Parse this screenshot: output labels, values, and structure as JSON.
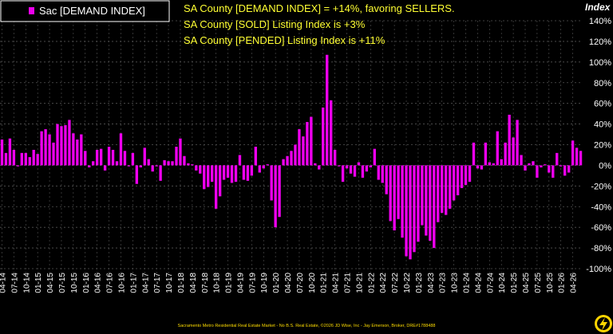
{
  "chart_data": {
    "type": "bar",
    "title": "",
    "xlabel": "",
    "ylabel": "Index",
    "ylim": [
      -100,
      140
    ],
    "yticks": [
      -100,
      -80,
      -60,
      -40,
      -20,
      0,
      20,
      40,
      60,
      80,
      100,
      120,
      140
    ],
    "ytick_labels": [
      "-100%",
      "-80%",
      "-60%",
      "-40%",
      "-20%",
      "0%",
      "20%",
      "40%",
      "60%",
      "80%",
      "100%",
      "120%",
      "140%"
    ],
    "grid": true,
    "legend_position": "top-left",
    "series": [
      {
        "name": "Sac [DEMAND INDEX]",
        "color": "#ee00ee",
        "start": "2014-04",
        "values": [
          25,
          12,
          26,
          15,
          -1,
          12,
          12,
          8,
          15,
          11,
          33,
          35,
          30,
          22,
          40,
          38,
          39,
          44,
          31,
          25,
          30,
          14,
          -2,
          4,
          15,
          16,
          -5,
          18,
          15,
          4,
          31,
          14,
          -1,
          12,
          -18,
          -2,
          17,
          6,
          -6,
          -1,
          -15,
          5,
          4,
          4,
          18,
          26,
          9,
          2,
          1,
          -5,
          -8,
          -23,
          -21,
          -16,
          -42,
          -30,
          -14,
          -12,
          -17,
          -16,
          10,
          -14,
          -15,
          -10,
          18,
          -7,
          -3,
          1,
          -34,
          -60,
          -50,
          6,
          9,
          14,
          20,
          35,
          28,
          42,
          47,
          2,
          -4,
          56,
          107,
          63,
          15,
          -1,
          -16,
          -3,
          -8,
          -11,
          3,
          -12,
          -6,
          -2,
          16,
          -14,
          -17,
          -28,
          -54,
          -63,
          -52,
          -70,
          -88,
          -91,
          -84,
          -74,
          -58,
          -68,
          -73,
          -80,
          -55,
          -46,
          -48,
          -42,
          -34,
          -29,
          -22,
          -19,
          -16,
          22,
          -3,
          -4,
          22,
          3,
          2,
          33,
          6,
          22,
          49,
          27,
          44,
          10,
          -5,
          2,
          4,
          -12,
          -2,
          1,
          -7,
          -12,
          12,
          -1,
          -10,
          -7,
          24,
          17,
          14
        ],
        "current_value": 14
      }
    ],
    "x_tick_labels": [
      "04-14",
      "07-14",
      "10-14",
      "01-15",
      "04-15",
      "07-15",
      "10-15",
      "01-16",
      "04-16",
      "07-16",
      "10-16",
      "01-17",
      "04-17",
      "07-17",
      "10-17",
      "01-18",
      "04-18",
      "07-18",
      "10-18",
      "01-19",
      "04-19",
      "07-19",
      "10-19",
      "01-20",
      "04-20",
      "07-20",
      "10-20",
      "01-21",
      "04-21",
      "07-21",
      "10-21",
      "01-22",
      "04-22",
      "07-22",
      "10-22",
      "01-23",
      "04-23",
      "07-23",
      "10-23",
      "01-24",
      "04-24",
      "07-24",
      "10-24",
      "01-25",
      "04-25",
      "07-25",
      "10-25",
      "01-26",
      "04-26"
    ],
    "annotations": [
      "SA County [DEMAND INDEX] = +14%, favoring SELLERS.",
      "SA County [SOLD] Listing Index is +3%",
      "SA County [PENDED] Listing Index is +11%"
    ],
    "footer": "Sacramento Metro Residential Real Estate Market - No B.S. Real Estate, ©2026 JD Wise, Inc - Jay Emerson, Broker, DRE#1788488"
  },
  "colors": {
    "background": "#000000",
    "bar": "#ee00ee",
    "grid": "#555555",
    "annotation": "#ffff33",
    "axis_text": "#ffffff",
    "logo": "#ffd400"
  },
  "logo": {
    "icon": "lightning-bolt-icon"
  }
}
